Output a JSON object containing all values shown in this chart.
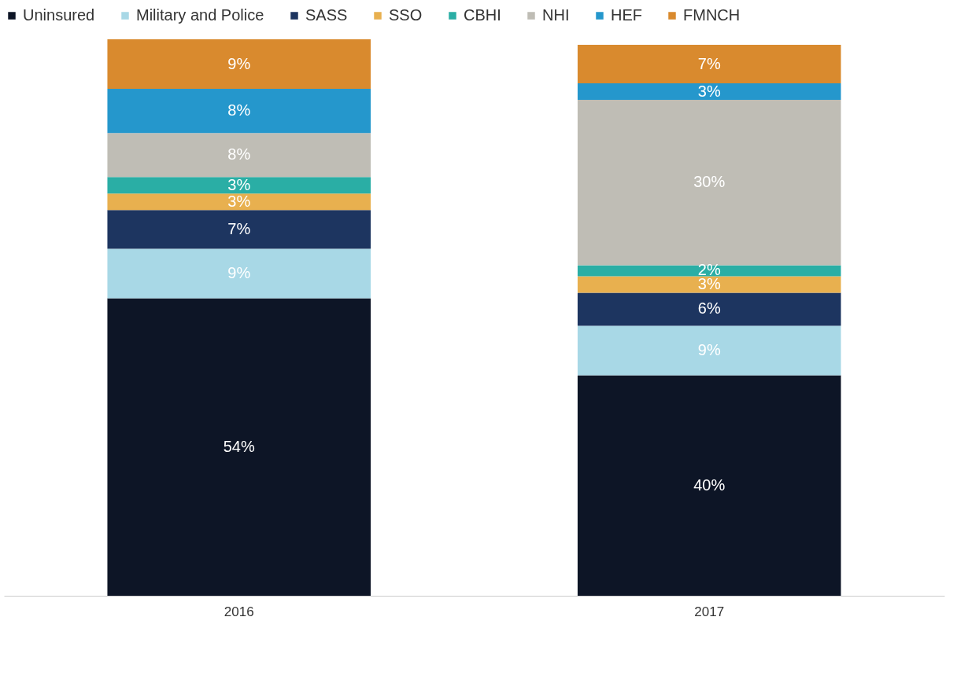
{
  "chart_data": {
    "type": "bar",
    "stacked": true,
    "legend": "top",
    "grid": false,
    "categories": [
      "2016",
      "2017"
    ],
    "series": [
      {
        "name": "Uninsured",
        "color": "#0d1526",
        "values": [
          54,
          40
        ],
        "value_labels": [
          "54%",
          "40%"
        ]
      },
      {
        "name": "Military and Police",
        "color": "#a8d8e6",
        "values": [
          9,
          9
        ],
        "value_labels": [
          "9%",
          "9%"
        ]
      },
      {
        "name": "SASS",
        "color": "#1d3560",
        "values": [
          7,
          6
        ],
        "value_labels": [
          "7%",
          "6%"
        ]
      },
      {
        "name": "SSO",
        "color": "#e8b04f",
        "values": [
          3,
          3
        ],
        "value_labels": [
          "3%",
          "3%"
        ]
      },
      {
        "name": "CBHI",
        "color": "#2aaea5",
        "values": [
          3,
          2
        ],
        "value_labels": [
          "3%",
          "2%"
        ]
      },
      {
        "name": "NHI",
        "color": "#bfbdb5",
        "values": [
          8,
          30
        ],
        "value_labels": [
          "8%",
          "30%"
        ]
      },
      {
        "name": "HEF",
        "color": "#2597cc",
        "values": [
          8,
          3
        ],
        "value_labels": [
          "8%",
          "3%"
        ]
      },
      {
        "name": "FMNCH",
        "color": "#d98a2e",
        "values": [
          9,
          7
        ],
        "value_labels": [
          "9%",
          "7%"
        ]
      }
    ]
  }
}
